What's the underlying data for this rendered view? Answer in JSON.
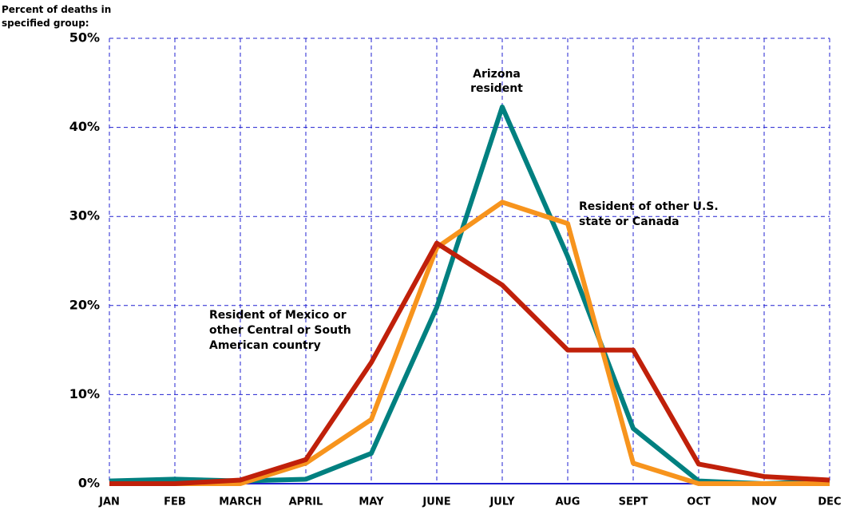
{
  "chart_data": {
    "type": "line",
    "y_axis_label": "Percent of deaths in specified group:",
    "categories": [
      "JAN",
      "FEB",
      "MARCH",
      "APRIL",
      "MAY",
      "JUNE",
      "JULY",
      "AUG",
      "SEPT",
      "OCT",
      "NOV",
      "DEC"
    ],
    "series": [
      {
        "name": "Arizona resident",
        "color": "#008080",
        "values": [
          0.3,
          0.5,
          0.3,
          0.5,
          3.4,
          19.8,
          42.3,
          25.5,
          6.2,
          0.3,
          0,
          0.3
        ]
      },
      {
        "name": "Resident of other U.S. state or Canada",
        "color": "#f7941d",
        "values": [
          0,
          0,
          0,
          2.3,
          7.2,
          26.5,
          31.6,
          29.2,
          2.3,
          0,
          0,
          0
        ]
      },
      {
        "name": "Resident of Mexico or other Central or South American country",
        "color": "#c0200a",
        "values": [
          0,
          0,
          0.4,
          2.7,
          13.6,
          27,
          22.3,
          15,
          15,
          2.2,
          0.8,
          0.4
        ]
      }
    ],
    "ylim": [
      0,
      50
    ],
    "yticks": [
      {
        "value": 0,
        "label": "0%"
      },
      {
        "value": 10,
        "label": "10%"
      },
      {
        "value": 20,
        "label": "20%"
      },
      {
        "value": 30,
        "label": "30%"
      },
      {
        "value": 40,
        "label": "40%"
      },
      {
        "value": 50,
        "label": "50%"
      }
    ],
    "grid": true
  }
}
